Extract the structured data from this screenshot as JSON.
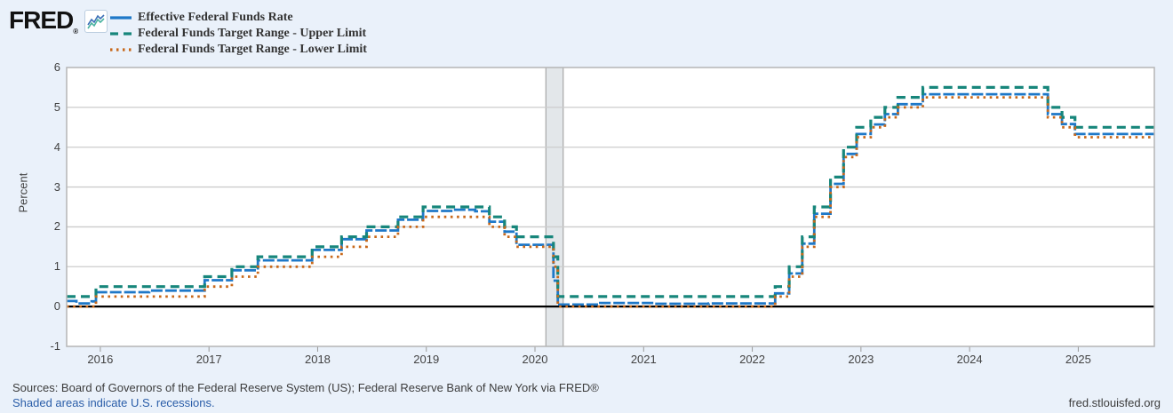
{
  "header": {
    "logo_text": "FRED",
    "logo_reg": "®"
  },
  "footer": {
    "sources": "Sources: Board of Governors of the Federal Reserve System (US); Federal Reserve Bank of New York via FRED®",
    "note": "Shaded areas indicate U.S. recessions.",
    "site": "fred.stlouisfed.org"
  },
  "colors": {
    "background": "#eaf1fa",
    "plot_background": "#ffffff",
    "plot_border": "#b5b5b5",
    "gridline": "#cccccc",
    "zero_line": "#000000",
    "recession_fill": "#e3e7ea",
    "recession_edge": "#999999",
    "tick": "#999999",
    "effr_blue": "#1e78c8",
    "upper_teal": "#17867b",
    "lower_orange": "#c8681a",
    "link_blue": "#2a5da8"
  },
  "chart_data": {
    "type": "line",
    "title": "",
    "xlabel": "",
    "ylabel": "Percent",
    "ylim": [
      -1,
      6
    ],
    "yticks": [
      -1,
      0,
      1,
      2,
      3,
      4,
      5,
      6
    ],
    "xlim": [
      2015.69,
      2025.7
    ],
    "xticks": [
      2016,
      2017,
      2018,
      2019,
      2020,
      2021,
      2022,
      2023,
      2024,
      2025
    ],
    "grid": true,
    "legend_position": "top-left",
    "recession_bands": [
      [
        2020.1,
        2020.26
      ]
    ],
    "series": [
      {
        "name": "Effective Federal Funds Rate",
        "color": "#1e78c8",
        "style": "solid",
        "interpolation": "step-after",
        "points": [
          [
            2015.69,
            0.14
          ],
          [
            2015.78,
            0.08
          ],
          [
            2015.92,
            0.13
          ],
          [
            2015.96,
            0.36
          ],
          [
            2016.45,
            0.4
          ],
          [
            2016.96,
            0.66
          ],
          [
            2017.21,
            0.91
          ],
          [
            2017.45,
            1.16
          ],
          [
            2017.95,
            1.42
          ],
          [
            2018.22,
            1.69
          ],
          [
            2018.45,
            1.91
          ],
          [
            2018.74,
            2.18
          ],
          [
            2018.97,
            2.4
          ],
          [
            2019.25,
            2.43
          ],
          [
            2019.45,
            2.39
          ],
          [
            2019.58,
            2.13
          ],
          [
            2019.72,
            1.88
          ],
          [
            2019.83,
            1.55
          ],
          [
            2020.17,
            0.65
          ],
          [
            2020.21,
            0.05
          ],
          [
            2020.6,
            0.09
          ],
          [
            2021.1,
            0.07
          ],
          [
            2021.6,
            0.08
          ],
          [
            2022.21,
            0.33
          ],
          [
            2022.34,
            0.83
          ],
          [
            2022.46,
            1.58
          ],
          [
            2022.57,
            2.33
          ],
          [
            2022.72,
            3.08
          ],
          [
            2022.84,
            3.83
          ],
          [
            2022.96,
            4.33
          ],
          [
            2023.09,
            4.57
          ],
          [
            2023.22,
            4.83
          ],
          [
            2023.34,
            5.08
          ],
          [
            2023.57,
            5.33
          ],
          [
            2024.72,
            4.83
          ],
          [
            2024.85,
            4.58
          ],
          [
            2024.97,
            4.33
          ],
          [
            2025.7,
            4.33
          ]
        ]
      },
      {
        "name": "Federal Funds Target Range - Upper Limit",
        "color": "#17867b",
        "style": "dashed",
        "interpolation": "step-after",
        "points": [
          [
            2015.69,
            0.25
          ],
          [
            2015.96,
            0.5
          ],
          [
            2016.96,
            0.75
          ],
          [
            2017.21,
            1.0
          ],
          [
            2017.45,
            1.25
          ],
          [
            2017.95,
            1.5
          ],
          [
            2018.22,
            1.75
          ],
          [
            2018.45,
            2.0
          ],
          [
            2018.74,
            2.25
          ],
          [
            2018.97,
            2.5
          ],
          [
            2019.58,
            2.25
          ],
          [
            2019.72,
            2.0
          ],
          [
            2019.83,
            1.75
          ],
          [
            2020.17,
            1.25
          ],
          [
            2020.21,
            0.25
          ],
          [
            2022.21,
            0.5
          ],
          [
            2022.34,
            1.0
          ],
          [
            2022.46,
            1.75
          ],
          [
            2022.57,
            2.5
          ],
          [
            2022.72,
            3.25
          ],
          [
            2022.84,
            4.0
          ],
          [
            2022.96,
            4.5
          ],
          [
            2023.09,
            4.75
          ],
          [
            2023.22,
            5.0
          ],
          [
            2023.34,
            5.25
          ],
          [
            2023.57,
            5.5
          ],
          [
            2024.72,
            5.0
          ],
          [
            2024.85,
            4.75
          ],
          [
            2024.97,
            4.5
          ],
          [
            2025.7,
            4.5
          ]
        ]
      },
      {
        "name": "Federal Funds Target Range - Lower Limit",
        "color": "#c8681a",
        "style": "dotted",
        "interpolation": "step-after",
        "points": [
          [
            2015.69,
            0.0
          ],
          [
            2015.96,
            0.25
          ],
          [
            2016.96,
            0.5
          ],
          [
            2017.21,
            0.75
          ],
          [
            2017.45,
            1.0
          ],
          [
            2017.95,
            1.25
          ],
          [
            2018.22,
            1.5
          ],
          [
            2018.45,
            1.75
          ],
          [
            2018.74,
            2.0
          ],
          [
            2018.97,
            2.25
          ],
          [
            2019.58,
            2.0
          ],
          [
            2019.72,
            1.75
          ],
          [
            2019.83,
            1.5
          ],
          [
            2020.17,
            1.0
          ],
          [
            2020.21,
            0.0
          ],
          [
            2022.21,
            0.25
          ],
          [
            2022.34,
            0.75
          ],
          [
            2022.46,
            1.5
          ],
          [
            2022.57,
            2.25
          ],
          [
            2022.72,
            3.0
          ],
          [
            2022.84,
            3.75
          ],
          [
            2022.96,
            4.25
          ],
          [
            2023.09,
            4.5
          ],
          [
            2023.22,
            4.75
          ],
          [
            2023.34,
            5.0
          ],
          [
            2023.57,
            5.25
          ],
          [
            2024.72,
            4.75
          ],
          [
            2024.85,
            4.5
          ],
          [
            2024.97,
            4.25
          ],
          [
            2025.7,
            4.25
          ]
        ]
      }
    ]
  }
}
